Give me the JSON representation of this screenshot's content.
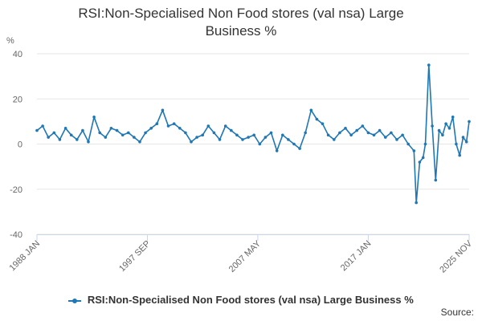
{
  "chart_data": {
    "type": "line",
    "title_lines": [
      "RSI:Non-Specialised Non Food stores (val nsa) Large",
      "Business %"
    ],
    "ylabel": "%",
    "ylim": [
      -40,
      40
    ],
    "yticks": [
      40,
      20,
      0,
      -20,
      -40
    ],
    "xrange": [
      1988.0,
      2025.83
    ],
    "xticks": [
      {
        "label": "1988 JAN",
        "value": 1988.0
      },
      {
        "label": "1997 SEP",
        "value": 1997.67
      },
      {
        "label": "2007 MAY",
        "value": 2007.33
      },
      {
        "label": "2017 JAN",
        "value": 2017.0
      },
      {
        "label": "2025 NOV",
        "value": 2025.83
      }
    ],
    "grid": true,
    "series": [
      {
        "name": "RSI:Non-Specialised Non Food stores (val nsa) Large Business %",
        "color": "#1f77b4",
        "points": [
          [
            1988.0,
            6
          ],
          [
            1988.5,
            8
          ],
          [
            1989.0,
            3
          ],
          [
            1989.5,
            5
          ],
          [
            1990.0,
            2
          ],
          [
            1990.5,
            7
          ],
          [
            1991.0,
            4
          ],
          [
            1991.5,
            2
          ],
          [
            1992.0,
            6
          ],
          [
            1992.5,
            1
          ],
          [
            1993.0,
            12
          ],
          [
            1993.5,
            5
          ],
          [
            1994.0,
            3
          ],
          [
            1994.5,
            7
          ],
          [
            1995.0,
            6
          ],
          [
            1995.5,
            4
          ],
          [
            1996.0,
            5
          ],
          [
            1996.5,
            3
          ],
          [
            1997.0,
            1
          ],
          [
            1997.5,
            5
          ],
          [
            1998.0,
            7
          ],
          [
            1998.5,
            9
          ],
          [
            1999.0,
            15
          ],
          [
            1999.5,
            8
          ],
          [
            2000.0,
            9
          ],
          [
            2000.5,
            7
          ],
          [
            2001.0,
            5
          ],
          [
            2001.5,
            1
          ],
          [
            2002.0,
            3
          ],
          [
            2002.5,
            4
          ],
          [
            2003.0,
            8
          ],
          [
            2003.5,
            5
          ],
          [
            2004.0,
            2
          ],
          [
            2004.5,
            8
          ],
          [
            2005.0,
            6
          ],
          [
            2005.5,
            4
          ],
          [
            2006.0,
            2
          ],
          [
            2006.5,
            3
          ],
          [
            2007.0,
            4
          ],
          [
            2007.5,
            0
          ],
          [
            2008.0,
            3
          ],
          [
            2008.5,
            5
          ],
          [
            2009.0,
            -3
          ],
          [
            2009.5,
            4
          ],
          [
            2010.0,
            2
          ],
          [
            2010.5,
            0
          ],
          [
            2011.0,
            -2
          ],
          [
            2011.5,
            5
          ],
          [
            2012.0,
            15
          ],
          [
            2012.5,
            11
          ],
          [
            2013.0,
            9
          ],
          [
            2013.5,
            4
          ],
          [
            2014.0,
            2
          ],
          [
            2014.5,
            5
          ],
          [
            2015.0,
            7
          ],
          [
            2015.5,
            4
          ],
          [
            2016.0,
            6
          ],
          [
            2016.5,
            8
          ],
          [
            2017.0,
            5
          ],
          [
            2017.5,
            4
          ],
          [
            2018.0,
            6
          ],
          [
            2018.5,
            3
          ],
          [
            2019.0,
            5
          ],
          [
            2019.5,
            2
          ],
          [
            2020.0,
            4
          ],
          [
            2020.5,
            0
          ],
          [
            2021.0,
            -3
          ],
          [
            2021.2,
            -26
          ],
          [
            2021.5,
            -8
          ],
          [
            2021.8,
            -6
          ],
          [
            2022.0,
            0
          ],
          [
            2022.3,
            35
          ],
          [
            2022.6,
            8
          ],
          [
            2022.9,
            -16
          ],
          [
            2023.2,
            6
          ],
          [
            2023.5,
            4
          ],
          [
            2023.8,
            9
          ],
          [
            2024.1,
            7
          ],
          [
            2024.4,
            12
          ],
          [
            2024.7,
            0
          ],
          [
            2025.0,
            -5
          ],
          [
            2025.3,
            3
          ],
          [
            2025.6,
            1
          ],
          [
            2025.83,
            10
          ]
        ]
      }
    ]
  },
  "legend": {
    "label": "RSI:Non-Specialised Non Food stores (val nsa) Large Business %"
  },
  "source": {
    "label": "Source:"
  }
}
